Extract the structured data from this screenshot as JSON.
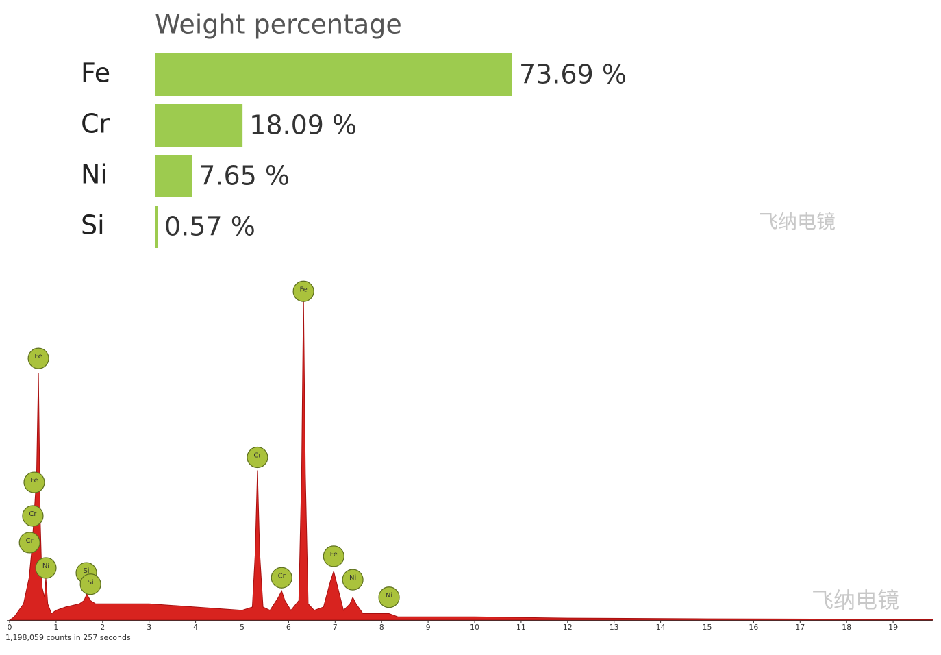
{
  "chart_data": [
    {
      "type": "bar",
      "orientation": "horizontal",
      "title": "Weight percentage",
      "categories": [
        "Fe",
        "Cr",
        "Ni",
        "Si"
      ],
      "values": [
        73.69,
        18.09,
        7.65,
        0.57
      ],
      "value_labels": [
        "73.69 %",
        "18.09 %",
        "7.65 %",
        "0.57 %"
      ],
      "color": "#9dcb4f"
    },
    {
      "type": "area",
      "color": "#d8231f",
      "note": "1,198,059 counts in 257 seconds",
      "xlim": [
        0,
        19.85
      ],
      "xticks": [
        0,
        1,
        2,
        3,
        4,
        5,
        6,
        7,
        8,
        9,
        10,
        11,
        12,
        13,
        14,
        15,
        16,
        17,
        18,
        19
      ],
      "x": [
        0,
        0.1,
        0.3,
        0.42,
        0.48,
        0.53,
        0.58,
        0.62,
        0.66,
        0.7,
        0.75,
        0.78,
        0.82,
        0.9,
        1.0,
        1.2,
        1.5,
        1.6,
        1.66,
        1.74,
        1.85,
        2.0,
        2.5,
        3.0,
        4.0,
        5.0,
        5.22,
        5.28,
        5.33,
        5.38,
        5.45,
        5.6,
        5.78,
        5.85,
        5.92,
        6.05,
        6.22,
        6.28,
        6.32,
        6.36,
        6.42,
        6.55,
        6.75,
        6.9,
        6.97,
        7.04,
        7.18,
        7.32,
        7.38,
        7.45,
        7.6,
        8.0,
        8.16,
        8.35,
        9.0,
        10.0,
        12.0,
        15.0,
        19.85
      ],
      "values": [
        0,
        1,
        5,
        13,
        22,
        33,
        44,
        76,
        30,
        10,
        7,
        13,
        5,
        2,
        3,
        4,
        5,
        6,
        8,
        6,
        5,
        5,
        5,
        5,
        4,
        3,
        4,
        20,
        46,
        20,
        4,
        3,
        7,
        9,
        6,
        3,
        6,
        45,
        100,
        45,
        5,
        3,
        4,
        12,
        15,
        11,
        3,
        5,
        7,
        5,
        2,
        2,
        2,
        1,
        1,
        1,
        0.6,
        0.4,
        0.2
      ],
      "markers": [
        {
          "label": "Fe",
          "x": 0.62,
          "y": 80.4
        },
        {
          "label": "Fe",
          "x": 0.53,
          "y": 42.3
        },
        {
          "label": "Cr",
          "x": 0.5,
          "y": 32
        },
        {
          "label": "Cr",
          "x": 0.43,
          "y": 23.8
        },
        {
          "label": "Ni",
          "x": 0.78,
          "y": 16
        },
        {
          "label": "Si",
          "x": 1.65,
          "y": 14.5
        },
        {
          "label": "Si",
          "x": 1.74,
          "y": 11
        },
        {
          "label": "Cr",
          "x": 5.33,
          "y": 50
        },
        {
          "label": "Cr",
          "x": 5.85,
          "y": 13
        },
        {
          "label": "Fe",
          "x": 6.32,
          "y": 101
        },
        {
          "label": "Fe",
          "x": 6.97,
          "y": 19.6
        },
        {
          "label": "Ni",
          "x": 7.38,
          "y": 12.4
        },
        {
          "label": "Ni",
          "x": 8.16,
          "y": 7
        }
      ],
      "watermarks": [
        "飞纳电镜",
        "飞纳电镜"
      ]
    }
  ]
}
